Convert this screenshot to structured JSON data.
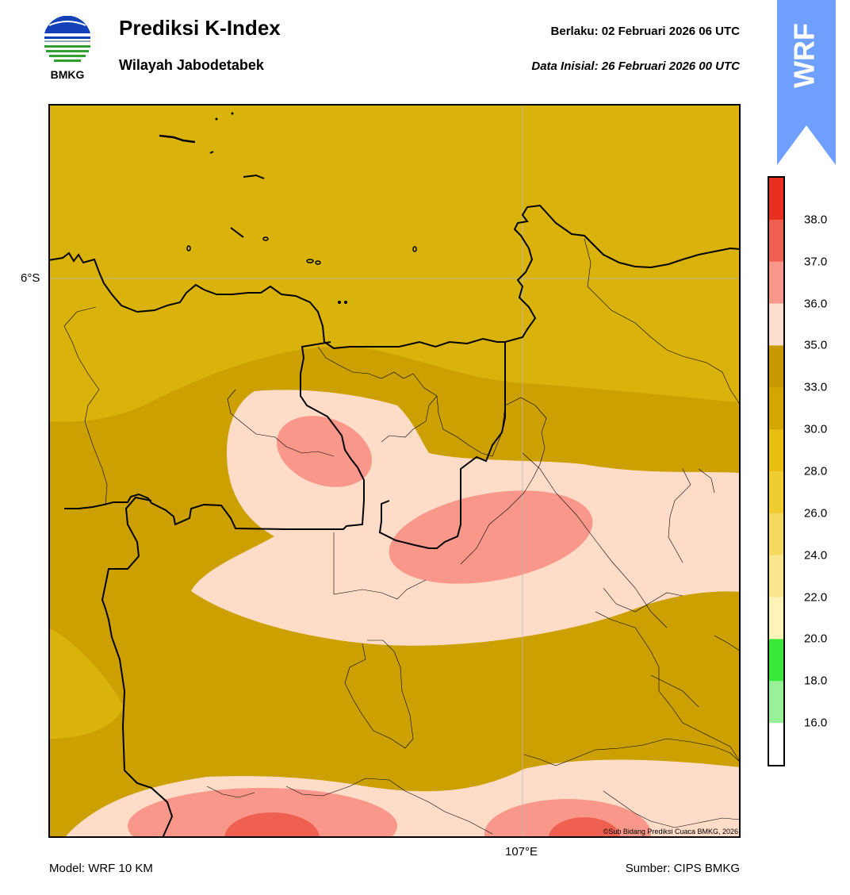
{
  "header": {
    "logo_text": "BMKG",
    "title": "Prediksi K-Index",
    "subtitle": "Wilayah Jabodetabek",
    "valid_text": "Berlaku:  02 Februari 2026 06 UTC",
    "initial_text": "Data Inisial:  26 Februari 2026 00 UTC"
  },
  "ribbon": {
    "text": "WRF",
    "color": "#6fa0ff"
  },
  "map": {
    "lat_label": "6°S",
    "lon_label": "107°E",
    "copyright": "©Sub Bidang Prediksi Cuaca BMKG, 2026",
    "colors": {
      "lt_30_33": "#ccA000",
      "lt_28_30": "#d9b30b",
      "lt_35_36": "#ffdcc8",
      "lt_36_37": "#f9978a",
      "lt_37_38": "#f06050"
    }
  },
  "colorbar": {
    "ticks": [
      "38.0",
      "37.0",
      "36.0",
      "35.0",
      "33.0",
      "30.0",
      "28.0",
      "26.0",
      "24.0",
      "22.0",
      "20.0",
      "18.0",
      "16.0"
    ],
    "bands_top_to_bottom": [
      "#e83020",
      "#f06050",
      "#f9978a",
      "#ffe0d0",
      "#c89800",
      "#d4a700",
      "#e8be10",
      "#efcc30",
      "#f5d860",
      "#fbe690",
      "#fff3b8",
      "#38e838",
      "#98f098",
      "#ffffff"
    ]
  },
  "footer": {
    "model": "Model: WRF 10 KM",
    "source": "Sumber: CIPS BMKG"
  }
}
